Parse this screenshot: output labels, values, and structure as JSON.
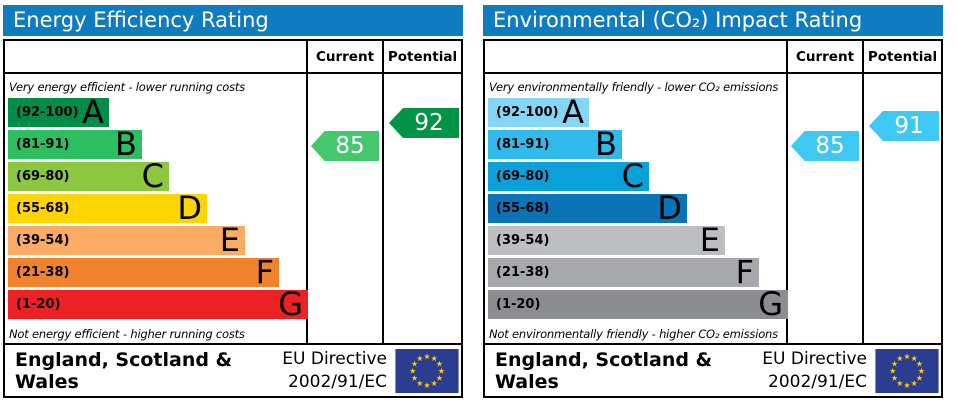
{
  "panels": [
    {
      "title": "Energy Efficiency Rating",
      "columns": [
        "Current",
        "Potential"
      ],
      "caption_top": "Very energy efficient - lower running costs",
      "caption_bottom": "Not energy efficient - higher running costs",
      "bands": [
        {
          "range": "(92-100)",
          "letter": "A",
          "color": "#018c47"
        },
        {
          "range": "(81-91)",
          "letter": "B",
          "color": "#2dbe62"
        },
        {
          "range": "(69-80)",
          "letter": "C",
          "color": "#8dc63f"
        },
        {
          "range": "(55-68)",
          "letter": "D",
          "color": "#fed402"
        },
        {
          "range": "(39-54)",
          "letter": "E",
          "color": "#fbab64"
        },
        {
          "range": "(21-38)",
          "letter": "F",
          "color": "#f1832d"
        },
        {
          "range": "(1-20)",
          "letter": "G",
          "color": "#ed2124"
        }
      ],
      "current": {
        "value": 85,
        "color": "#45c86d"
      },
      "potential": {
        "value": 92,
        "color": "#029347"
      },
      "footer_region": "England, Scotland & Wales",
      "footer_directive_line1": "EU Directive",
      "footer_directive_line2": "2002/91/EC"
    },
    {
      "title": "Environmental (CO₂) Impact Rating",
      "columns": [
        "Current",
        "Potential"
      ],
      "caption_top": "Very environmentally friendly - lower CO₂ emissions",
      "caption_bottom": "Not environmentally friendly - higher CO₂ emissions",
      "bands": [
        {
          "range": "(92-100)",
          "letter": "A",
          "color": "#85d5f4"
        },
        {
          "range": "(81-91)",
          "letter": "B",
          "color": "#30b9eb"
        },
        {
          "range": "(69-80)",
          "letter": "C",
          "color": "#0aa0da"
        },
        {
          "range": "(55-68)",
          "letter": "D",
          "color": "#0b73b6"
        },
        {
          "range": "(39-54)",
          "letter": "E",
          "color": "#bdbec1"
        },
        {
          "range": "(21-38)",
          "letter": "F",
          "color": "#a6a8ab"
        },
        {
          "range": "(1-20)",
          "letter": "G",
          "color": "#8b8d90"
        }
      ],
      "current": {
        "value": 85,
        "color": "#40c8f4"
      },
      "potential": {
        "value": 91,
        "color": "#40c8f4"
      },
      "footer_region": "England, Scotland & Wales",
      "footer_directive_line1": "EU Directive",
      "footer_directive_line2": "2002/91/EC"
    }
  ],
  "colors": {
    "header_bar": "#0f7cc0",
    "eu_flag_blue": "#2b3d90",
    "eu_star_yellow": "#ffcc00"
  },
  "chart_data": [
    {
      "type": "bar",
      "title": "Energy Efficiency Rating",
      "categories": [
        "A",
        "B",
        "C",
        "D",
        "E",
        "F",
        "G"
      ],
      "band_ranges": [
        "92-100",
        "81-91",
        "69-80",
        "55-68",
        "39-54",
        "21-38",
        "1-20"
      ],
      "series": [
        {
          "name": "Current",
          "values": [
            85
          ],
          "band": "B"
        },
        {
          "name": "Potential",
          "values": [
            92
          ],
          "band": "A"
        }
      ],
      "ylim": [
        1,
        100
      ],
      "legend_position": "table-columns-right",
      "annotations": [
        "Very energy efficient - lower running costs",
        "Not energy efficient - higher running costs"
      ]
    },
    {
      "type": "bar",
      "title": "Environmental (CO₂) Impact Rating",
      "categories": [
        "A",
        "B",
        "C",
        "D",
        "E",
        "F",
        "G"
      ],
      "band_ranges": [
        "92-100",
        "81-91",
        "69-80",
        "55-68",
        "39-54",
        "21-38",
        "1-20"
      ],
      "series": [
        {
          "name": "Current",
          "values": [
            85
          ],
          "band": "B"
        },
        {
          "name": "Potential",
          "values": [
            91
          ],
          "band": "B"
        }
      ],
      "ylim": [
        1,
        100
      ],
      "legend_position": "table-columns-right",
      "annotations": [
        "Very environmentally friendly - lower CO₂ emissions",
        "Not environmentally friendly - higher CO₂ emissions"
      ]
    }
  ]
}
